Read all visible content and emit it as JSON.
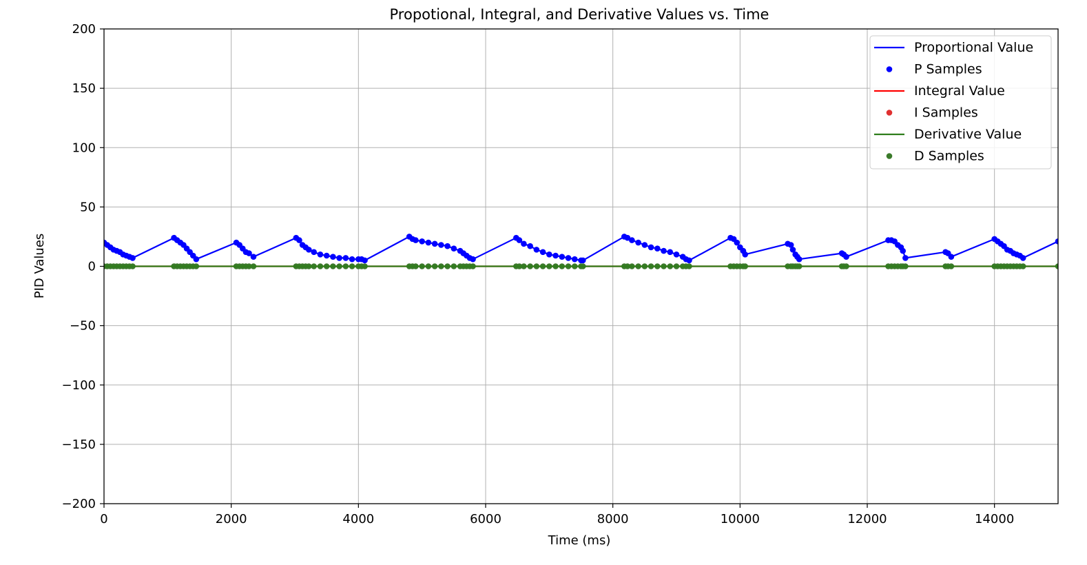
{
  "chart_data": {
    "type": "line",
    "title": "Propotional, Integral, and Derivative Values vs. Time",
    "xlabel": "Time (ms)",
    "ylabel": "PID Values",
    "xlim": [
      0,
      15000
    ],
    "ylim": [
      -200,
      200
    ],
    "xticks": [
      0,
      2000,
      4000,
      6000,
      8000,
      10000,
      12000,
      14000
    ],
    "yticks": [
      200,
      150,
      100,
      50,
      0,
      -50,
      -100,
      -150,
      -200
    ],
    "ytick_labels": [
      "200",
      "150",
      "100",
      "50",
      "0",
      "−50",
      "−100",
      "−150",
      "−200"
    ],
    "grid": true,
    "legend_position": "top-right",
    "legend": [
      {
        "label": "Proportional Value",
        "kind": "line",
        "color": "#0000ff"
      },
      {
        "label": "P Samples",
        "kind": "marker",
        "color": "#0000ff"
      },
      {
        "label": "Integral Value",
        "kind": "line",
        "color": "#ff0000"
      },
      {
        "label": "I Samples",
        "kind": "marker",
        "color": "#e03030"
      },
      {
        "label": "Derivative Value",
        "kind": "line",
        "color": "#2e7d1a"
      },
      {
        "label": "D Samples",
        "kind": "marker",
        "color": "#3a7a2a"
      }
    ],
    "series": [
      {
        "name": "Proportional Value",
        "color": "#0000ff",
        "x": [
          0,
          50,
          100,
          150,
          200,
          250,
          300,
          350,
          400,
          450,
          1100,
          1150,
          1200,
          1250,
          1300,
          1350,
          1400,
          1450,
          2080,
          2130,
          2180,
          2230,
          2280,
          2350,
          3020,
          3070,
          3120,
          3170,
          3220,
          3300,
          3400,
          3500,
          3600,
          3700,
          3800,
          3900,
          4000,
          4050,
          4100,
          4800,
          4850,
          4900,
          5000,
          5100,
          5200,
          5300,
          5400,
          5500,
          5600,
          5650,
          5700,
          5750,
          5800,
          6480,
          6530,
          6600,
          6700,
          6800,
          6900,
          7000,
          7100,
          7200,
          7300,
          7400,
          7500,
          7530,
          8180,
          8230,
          8300,
          8400,
          8500,
          8600,
          8700,
          8800,
          8900,
          9000,
          9100,
          9150,
          9200,
          9850,
          9900,
          9950,
          10000,
          10050,
          10080,
          10750,
          10800,
          10830,
          10870,
          10900,
          10930,
          11600,
          11630,
          11670,
          12330,
          12380,
          12430,
          12480,
          12530,
          12560,
          12600,
          13230,
          13270,
          13320,
          14000,
          14050,
          14100,
          14150,
          14200,
          14250,
          14300,
          14350,
          14400,
          14450,
          15000
        ],
        "y": [
          20,
          18,
          16,
          14,
          13,
          12,
          10,
          9,
          8,
          7,
          24,
          22,
          20,
          18,
          15,
          12,
          9,
          6,
          20,
          18,
          15,
          12,
          11,
          8,
          24,
          22,
          18,
          16,
          14,
          12,
          10,
          9,
          8,
          7,
          7,
          6,
          6,
          6,
          5,
          25,
          23,
          22,
          21,
          20,
          19,
          18,
          17,
          15,
          13,
          11,
          9,
          7,
          6,
          24,
          22,
          19,
          17,
          14,
          12,
          10,
          9,
          8,
          7,
          6,
          5,
          5,
          25,
          24,
          22,
          20,
          18,
          16,
          15,
          13,
          12,
          10,
          8,
          6,
          5,
          24,
          23,
          20,
          16,
          13,
          10,
          19,
          18,
          14,
          10,
          8,
          6,
          11,
          10,
          8,
          22,
          22,
          21,
          18,
          16,
          13,
          7,
          12,
          11,
          8,
          23,
          21,
          19,
          17,
          14,
          13,
          11,
          10,
          9,
          7,
          21
        ]
      },
      {
        "name": "Integral Value",
        "color": "#ff0000",
        "x": [
          0,
          15000
        ],
        "y": [
          0,
          0
        ]
      },
      {
        "name": "Derivative Value",
        "color": "#2e7d1a",
        "x": [
          0,
          15000
        ],
        "y": [
          0,
          0
        ]
      }
    ]
  }
}
